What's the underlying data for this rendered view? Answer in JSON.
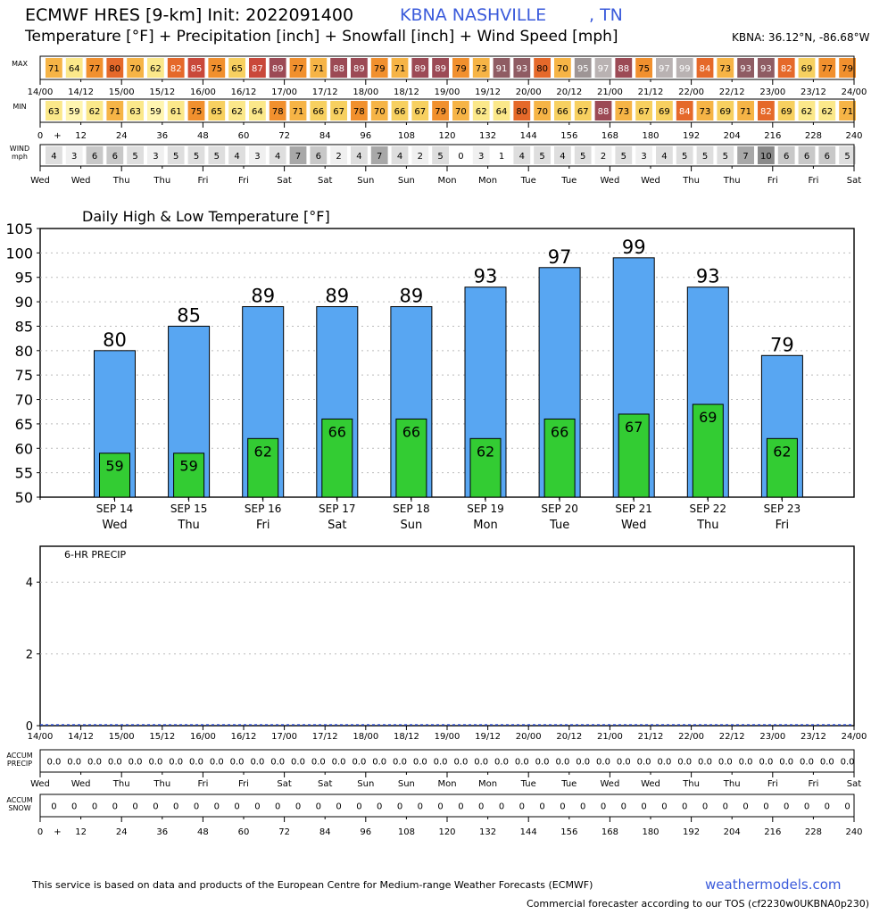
{
  "header": {
    "title": "ECMWF HRES [9-km] Init: 2022091400",
    "station": "KBNA NASHVILLE",
    "state": ", TN",
    "subtitle": "Temperature [°F] + Precipitation [inch] + Snowfall [inch] + Wind Speed [mph]",
    "coords": "KBNA: 36.12°N, -86.68°W"
  },
  "strips": {
    "max_label": "MAX",
    "min_label": "MIN",
    "wind_label_1": "WIND",
    "wind_label_2": "mph",
    "accum_precip_1": "ACCUM",
    "accum_precip_2": "PRECIP",
    "accum_snow_1": "ACCUM",
    "accum_snow_2": "SNOW",
    "max_values": [
      71,
      64,
      77,
      80,
      70,
      62,
      82,
      85,
      75,
      65,
      87,
      89,
      77,
      71,
      88,
      89,
      79,
      71,
      89,
      89,
      79,
      73,
      91,
      93,
      80,
      70,
      95,
      97,
      88,
      75,
      97,
      99,
      84,
      73,
      93,
      93,
      82,
      69,
      77,
      79
    ],
    "min_values": [
      63,
      59,
      62,
      71,
      63,
      59,
      61,
      75,
      65,
      62,
      64,
      78,
      71,
      66,
      67,
      78,
      70,
      66,
      67,
      79,
      70,
      62,
      64,
      80,
      70,
      66,
      67,
      88,
      73,
      67,
      69,
      84,
      73,
      69,
      71,
      82,
      69,
      62,
      62,
      71
    ],
    "wind_values": [
      4,
      3,
      6,
      6,
      5,
      3,
      5,
      5,
      5,
      4,
      3,
      4,
      7,
      6,
      2,
      4,
      7,
      4,
      2,
      5,
      0,
      3,
      1,
      4,
      5,
      4,
      5,
      2,
      5,
      3,
      4,
      5,
      5,
      5,
      7,
      10,
      6,
      6,
      6,
      5
    ],
    "precip_accum": [
      "0.0",
      "0.0",
      "0.0",
      "0.0",
      "0.0",
      "0.0",
      "0.0",
      "0.0",
      "0.0",
      "0.0",
      "0.0",
      "0.0",
      "0.0",
      "0.0",
      "0.0",
      "0.0",
      "0.0",
      "0.0",
      "0.0",
      "0.0",
      "0.0",
      "0.0",
      "0.0",
      "0.0",
      "0.0",
      "0.0",
      "0.0",
      "0.0",
      "0.0",
      "0.0",
      "0.0",
      "0.0",
      "0.0",
      "0.0",
      "0.0",
      "0.0",
      "0.0",
      "0.0",
      "0.0",
      "0.0"
    ],
    "snow_accum": [
      "0",
      "0",
      "0",
      "0",
      "0",
      "0",
      "0",
      "0",
      "0",
      "0",
      "0",
      "0",
      "0",
      "0",
      "0",
      "0",
      "0",
      "0",
      "0",
      "0",
      "0",
      "0",
      "0",
      "0",
      "0",
      "0",
      "0",
      "0",
      "0",
      "0",
      "0",
      "0",
      "0",
      "0",
      "0",
      "0",
      "0",
      "0",
      "0",
      "0"
    ],
    "time_labels": [
      "14/00",
      "14/12",
      "15/00",
      "15/12",
      "16/00",
      "16/12",
      "17/00",
      "17/12",
      "18/00",
      "18/12",
      "19/00",
      "19/12",
      "20/00",
      "20/12",
      "21/00",
      "21/12",
      "22/00",
      "22/12",
      "23/00",
      "23/12",
      "24/00"
    ],
    "hour_labels": [
      "0",
      "+",
      "12",
      "24",
      "36",
      "48",
      "60",
      "72",
      "84",
      "96",
      "108",
      "120",
      "132",
      "144",
      "156",
      "168",
      "180",
      "192",
      "204",
      "216",
      "228",
      "240"
    ],
    "day_labels": [
      "Wed",
      "Wed",
      "Thu",
      "Thu",
      "Fri",
      "Fri",
      "Sat",
      "Sat",
      "Sun",
      "Sun",
      "Mon",
      "Mon",
      "Tue",
      "Tue",
      "Wed",
      "Wed",
      "Thu",
      "Thu",
      "Fri",
      "Fri",
      "Sat"
    ]
  },
  "chart_data": [
    {
      "type": "bar",
      "title": "Daily High & Low Temperature [°F]",
      "categories": [
        "SEP 14",
        "SEP 15",
        "SEP 16",
        "SEP 17",
        "SEP 18",
        "SEP 19",
        "SEP 20",
        "SEP 21",
        "SEP 22",
        "SEP 23"
      ],
      "weekdays": [
        "Wed",
        "Thu",
        "Fri",
        "Sat",
        "Sun",
        "Mon",
        "Tue",
        "Wed",
        "Thu",
        "Fri"
      ],
      "series": [
        {
          "values": [
            80,
            85,
            89,
            89,
            89,
            93,
            97,
            99,
            93,
            79
          ],
          "color": "#58a6f2"
        },
        {
          "values": [
            59,
            59,
            62,
            66,
            66,
            62,
            66,
            67,
            69,
            62
          ],
          "color": "#33cc33"
        }
      ],
      "ylim": [
        50,
        105
      ],
      "yticks": [
        50,
        55,
        60,
        65,
        70,
        75,
        80,
        85,
        90,
        95,
        100,
        105
      ],
      "grid": true
    },
    {
      "type": "bar",
      "title": "6-HR PRECIP",
      "x": [
        "14/00",
        "14/12",
        "15/00",
        "15/12",
        "16/00",
        "16/12",
        "17/00",
        "17/12",
        "18/00",
        "18/12",
        "19/00",
        "19/12",
        "20/00",
        "20/12",
        "21/00",
        "21/12",
        "22/00",
        "22/12",
        "23/00",
        "23/12",
        "24/00"
      ],
      "values": [
        0,
        0,
        0,
        0,
        0,
        0,
        0,
        0,
        0,
        0,
        0,
        0,
        0,
        0,
        0,
        0,
        0,
        0,
        0,
        0,
        0
      ],
      "ylim": [
        0,
        5
      ],
      "yticks": [
        0,
        2,
        4
      ],
      "grid": true
    }
  ],
  "footer": {
    "left": "This service is based on data and products of the European Centre for Medium-range Weather Forecasts (ECMWF)",
    "right": "weathermodels.com",
    "tos": "Commercial forecaster according to our TOS (cf2230w0UKBNA0p230)"
  }
}
